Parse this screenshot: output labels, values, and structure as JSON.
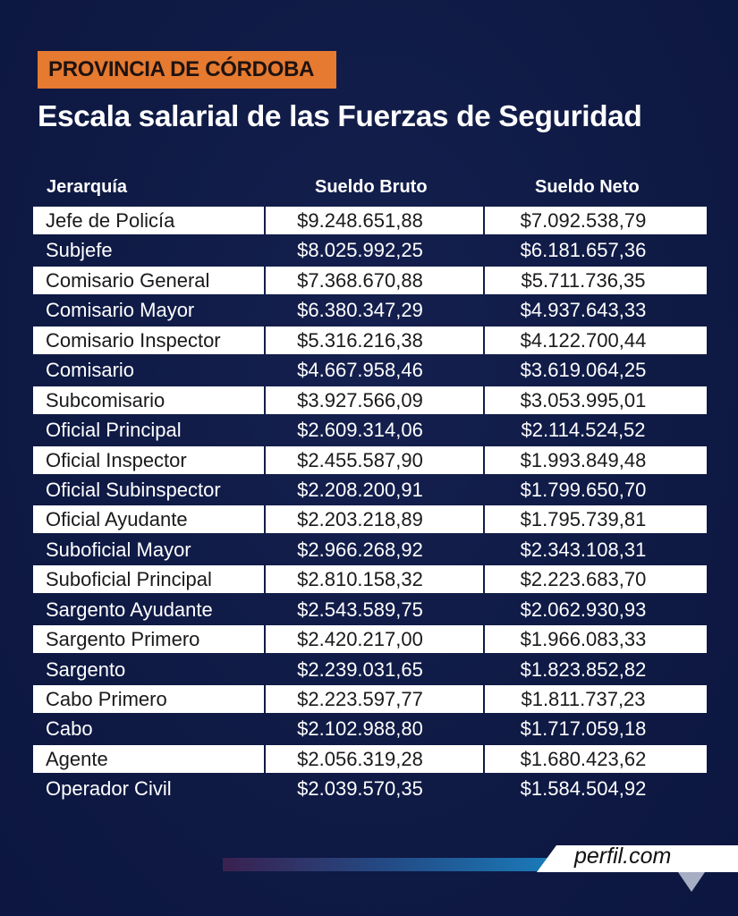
{
  "header": {
    "badge": "PROVINCIA DE CÓRDOBA",
    "title": "Escala salarial de las Fuerzas de Seguridad"
  },
  "table": {
    "columns": [
      "Jerarquía",
      "Sueldo Bruto",
      "Sueldo Neto"
    ],
    "rows": [
      {
        "rank": "Jefe de Policía",
        "bruto": "$9.248.651,88",
        "neto": "$7.092.538,79"
      },
      {
        "rank": "Subjefe",
        "bruto": "$8.025.992,25",
        "neto": "$6.181.657,36"
      },
      {
        "rank": "Comisario General",
        "bruto": "$7.368.670,88",
        "neto": "$5.711.736,35"
      },
      {
        "rank": "Comisario Mayor",
        "bruto": "$6.380.347,29",
        "neto": "$4.937.643,33"
      },
      {
        "rank": "Comisario Inspector",
        "bruto": "$5.316.216,38",
        "neto": "$4.122.700,44"
      },
      {
        "rank": "Comisario",
        "bruto": "$4.667.958,46",
        "neto": "$3.619.064,25"
      },
      {
        "rank": "Subcomisario",
        "bruto": "$3.927.566,09",
        "neto": "$3.053.995,01"
      },
      {
        "rank": "Oficial Principal",
        "bruto": "$2.609.314,06",
        "neto": "$2.114.524,52"
      },
      {
        "rank": "Oficial Inspector",
        "bruto": "$2.455.587,90",
        "neto": "$1.993.849,48"
      },
      {
        "rank": "Oficial Subinspector",
        "bruto": "$2.208.200,91",
        "neto": "$1.799.650,70"
      },
      {
        "rank": "Oficial Ayudante",
        "bruto": "$2.203.218,89",
        "neto": "$1.795.739,81"
      },
      {
        "rank": "Suboficial Mayor",
        "bruto": "$2.966.268,92",
        "neto": "$2.343.108,31"
      },
      {
        "rank": "Suboficial Principal",
        "bruto": "$2.810.158,32",
        "neto": "$2.223.683,70"
      },
      {
        "rank": "Sargento Ayudante",
        "bruto": "$2.543.589,75",
        "neto": "$2.062.930,93"
      },
      {
        "rank": "Sargento Primero",
        "bruto": "$2.420.217,00",
        "neto": "$1.966.083,33"
      },
      {
        "rank": "Sargento",
        "bruto": "$2.239.031,65",
        "neto": "$1.823.852,82"
      },
      {
        "rank": "Cabo Primero",
        "bruto": "$2.223.597,77",
        "neto": "$1.811.737,23"
      },
      {
        "rank": "Cabo",
        "bruto": "$2.102.988,80",
        "neto": "$1.717.059,18"
      },
      {
        "rank": "Agente",
        "bruto": "$2.056.319,28",
        "neto": "$1.680.423,62"
      },
      {
        "rank": "Operador Civil",
        "bruto": "$2.039.570,35",
        "neto": "$1.584.504,92"
      }
    ]
  },
  "footer": {
    "logo": "perfil.com"
  },
  "colors": {
    "background": "#0f1a45",
    "badge": "#e57a30",
    "row_light": "#ffffff"
  }
}
